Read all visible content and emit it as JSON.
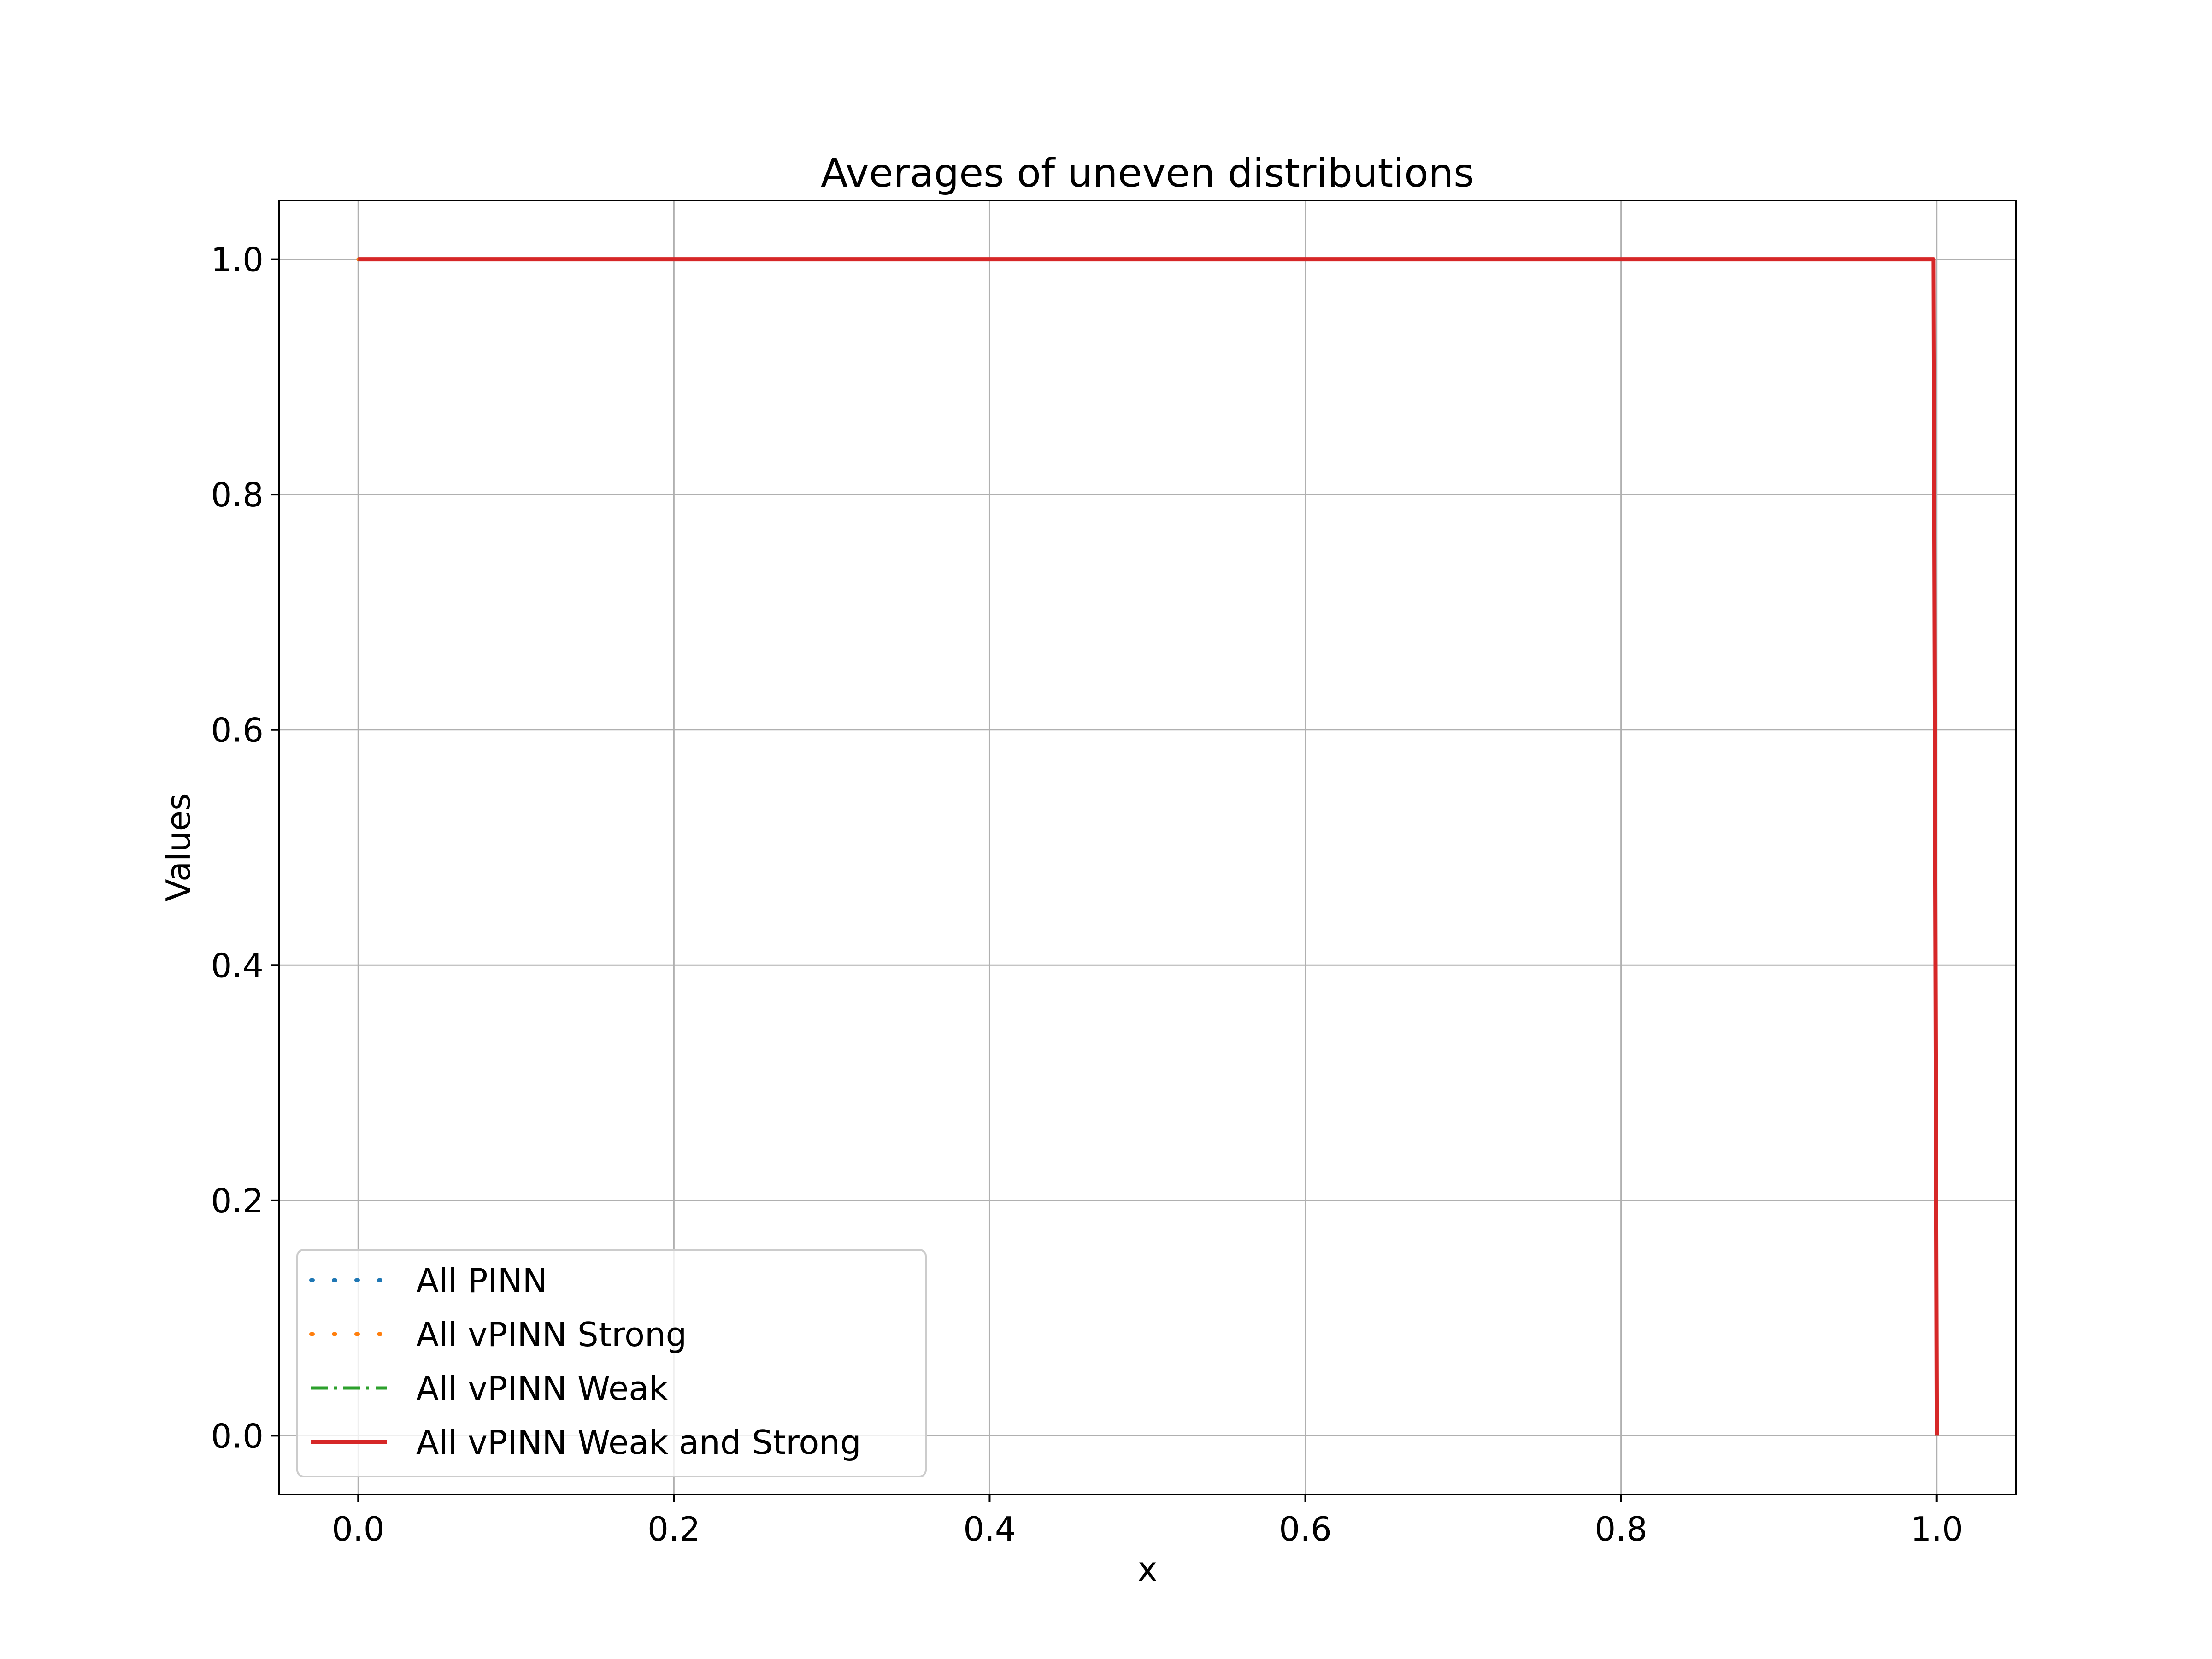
{
  "chart_data": {
    "type": "line",
    "title": "Averages of uneven distributions",
    "xlabel": "x",
    "ylabel": "Values",
    "xlim": [
      -0.05,
      1.05
    ],
    "ylim": [
      -0.05,
      1.05
    ],
    "xticks": [
      0.0,
      0.2,
      0.4,
      0.6,
      0.8,
      1.0
    ],
    "yticks": [
      0.0,
      0.2,
      0.4,
      0.6,
      0.8,
      1.0
    ],
    "xtick_labels": [
      "0.0",
      "0.2",
      "0.4",
      "0.6",
      "0.8",
      "1.0"
    ],
    "ytick_labels": [
      "0.0",
      "0.2",
      "0.4",
      "0.6",
      "0.8",
      "1.0"
    ],
    "grid": true,
    "legend_position": "lower-left",
    "series": [
      {
        "name": "All PINN",
        "color": "#1f77b4",
        "style": "dotted",
        "x": [
          0.0,
          0.998,
          1.0
        ],
        "y": [
          1.0,
          1.0,
          0.0
        ]
      },
      {
        "name": "All vPINN Strong",
        "color": "#ff7f0e",
        "style": "dotted",
        "x": [
          0.0,
          0.998,
          1.0
        ],
        "y": [
          1.0,
          1.0,
          0.0
        ]
      },
      {
        "name": "All vPINN Weak",
        "color": "#2ca02c",
        "style": "dashdot",
        "x": [
          0.0,
          0.998,
          1.0
        ],
        "y": [
          1.0,
          1.0,
          0.0
        ]
      },
      {
        "name": "All vPINN Weak and Strong",
        "color": "#d62728",
        "style": "solid",
        "x": [
          0.0,
          0.998,
          1.0
        ],
        "y": [
          1.0,
          1.0,
          0.0
        ]
      }
    ]
  }
}
